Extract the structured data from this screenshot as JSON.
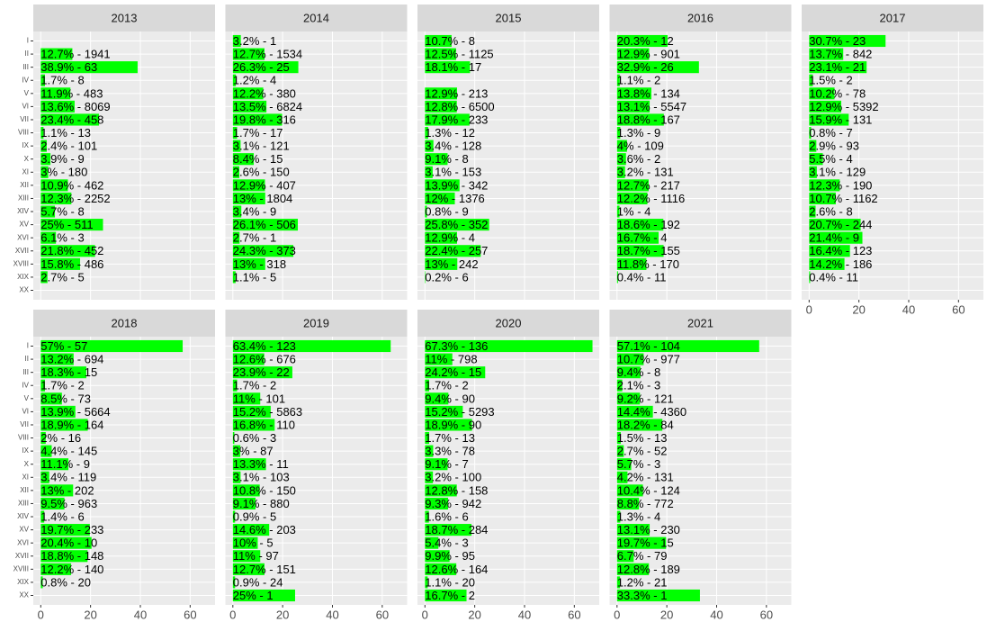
{
  "chart_data": {
    "type": "bar",
    "orientation": "horizontal",
    "color": "#00ff00",
    "xlim": [
      -3,
      70
    ],
    "xticks": [
      0,
      20,
      40,
      60
    ],
    "grid": true,
    "categories": [
      "I",
      "II",
      "III",
      "IV",
      "V",
      "VI",
      "VII",
      "VIII",
      "IX",
      "X",
      "XI",
      "XII",
      "XIII",
      "XIV",
      "XV",
      "XVI",
      "XVII",
      "XVIII",
      "XIX",
      "XX"
    ],
    "facets": [
      {
        "title": "2013",
        "values": [
          null,
          12.7,
          38.9,
          1.7,
          11.9,
          13.6,
          23.4,
          1.1,
          2.4,
          3.9,
          3,
          10.9,
          12.3,
          5.7,
          25,
          6.1,
          21.8,
          15.8,
          2.7,
          null
        ],
        "value_labels": [
          null,
          "12.7% - 1941",
          "38.9% - 63",
          "1.7% - 8",
          "11.9% - 483",
          "13.6% - 8069",
          "23.4% - 458",
          "1.1% - 13",
          "2.4% - 101",
          "3.9% - 9",
          "3% - 180",
          "10.9% - 462",
          "12.3% - 2252",
          "5.7% - 8",
          "25% - 511",
          "6.1% - 3",
          "21.8% - 452",
          "15.8% - 486",
          "2.7% - 5",
          null
        ]
      },
      {
        "title": "2014",
        "values": [
          3.2,
          12.7,
          26.3,
          1.2,
          12.2,
          13.5,
          19.8,
          1.7,
          3.1,
          8.4,
          2.6,
          12.9,
          13,
          3.4,
          26.1,
          2.7,
          24.3,
          13,
          1.1,
          null
        ],
        "value_labels": [
          "3.2% - 1",
          "12.7% - 1534",
          "26.3% - 25",
          "1.2% - 4",
          "12.2% - 380",
          "13.5% - 6824",
          "19.8% - 316",
          "1.7% - 17",
          "3.1% - 121",
          "8.4% - 15",
          "2.6% - 150",
          "12.9% - 407",
          "13% - 1804",
          "3.4% - 9",
          "26.1% - 506",
          "2.7% - 1",
          "24.3% - 373",
          "13% - 318",
          "1.1% - 5",
          null
        ]
      },
      {
        "title": "2015",
        "values": [
          10.7,
          12.5,
          18.1,
          null,
          12.9,
          12.8,
          17.9,
          1.3,
          3.4,
          9.1,
          3.1,
          13.9,
          12,
          0.8,
          25.8,
          12.9,
          22.4,
          13,
          0.2,
          null
        ],
        "value_labels": [
          "10.7% - 8",
          "12.5% - 1125",
          "18.1% - 17",
          null,
          "12.9% - 213",
          "12.8% - 6500",
          "17.9% - 233",
          "1.3% - 12",
          "3.4% - 128",
          "9.1% - 8",
          "3.1% - 153",
          "13.9% - 342",
          "12% - 1376",
          "0.8% - 9",
          "25.8% - 352",
          "12.9% - 4",
          "22.4% - 257",
          "13% - 242",
          "0.2% - 6",
          null
        ]
      },
      {
        "title": "2016",
        "values": [
          20.3,
          12.9,
          32.9,
          1.1,
          13.8,
          13.1,
          18.8,
          1.3,
          4,
          3.6,
          3.2,
          12.7,
          12.2,
          1,
          18.6,
          16.7,
          18.7,
          11.8,
          0.4,
          null
        ],
        "value_labels": [
          "20.3% - 12",
          "12.9% - 901",
          "32.9% - 26",
          "1.1% - 2",
          "13.8% - 134",
          "13.1% - 5547",
          "18.8% - 167",
          "1.3% - 9",
          "4% - 109",
          "3.6% - 2",
          "3.2% - 131",
          "12.7% - 217",
          "12.2% - 1116",
          "1% - 4",
          "18.6% - 192",
          "16.7% - 4",
          "18.7% - 155",
          "11.8% - 170",
          "0.4% - 11",
          null
        ]
      },
      {
        "title": "2017",
        "values": [
          30.7,
          13.7,
          23.1,
          1.5,
          10.2,
          12.9,
          15.9,
          0.8,
          2.9,
          5.5,
          3.1,
          12.3,
          10.7,
          2.6,
          20.7,
          21.4,
          16.4,
          14.2,
          0.4,
          null
        ],
        "value_labels": [
          "30.7% - 23",
          "13.7% - 842",
          "23.1% - 21",
          "1.5% - 2",
          "10.2% - 78",
          "12.9% - 5392",
          "15.9% - 131",
          "0.8% - 7",
          "2.9% - 93",
          "5.5% - 4",
          "3.1% - 129",
          "12.3% - 190",
          "10.7% - 1162",
          "2.6% - 8",
          "20.7% - 244",
          "21.4% - 9",
          "16.4% - 123",
          "14.2% - 186",
          "0.4% - 11",
          null
        ]
      },
      {
        "title": "2018",
        "values": [
          57,
          13.2,
          18.3,
          1.7,
          8.5,
          13.9,
          18.9,
          2,
          4.4,
          11.1,
          3.4,
          13,
          9.5,
          1.4,
          19.7,
          20.4,
          18.8,
          12.2,
          0.8,
          null
        ],
        "value_labels": [
          "57% - 57",
          "13.2% - 694",
          "18.3% - 15",
          "1.7% - 2",
          "8.5% - 73",
          "13.9% - 5664",
          "18.9% - 164",
          "2% - 16",
          "4.4% - 145",
          "11.1% - 9",
          "3.4% - 119",
          "13% - 202",
          "9.5% - 963",
          "1.4% - 6",
          "19.7% - 233",
          "20.4% - 10",
          "18.8% - 148",
          "12.2% - 140",
          "0.8% - 20",
          null
        ]
      },
      {
        "title": "2019",
        "values": [
          63.4,
          12.6,
          23.9,
          1.7,
          11,
          15.2,
          16.8,
          0.6,
          3,
          13.3,
          3.1,
          10.8,
          9.1,
          0.9,
          14.6,
          10,
          11,
          12.7,
          0.9,
          25
        ],
        "value_labels": [
          "63.4% - 123",
          "12.6% - 676",
          "23.9% - 22",
          "1.7% - 2",
          "11% - 101",
          "15.2% - 5863",
          "16.8% - 110",
          "0.6% - 3",
          "3% - 87",
          "13.3% - 11",
          "3.1% - 103",
          "10.8% - 150",
          "9.1% - 880",
          "0.9% - 5",
          "14.6% - 203",
          "10% - 5",
          "11% - 97",
          "12.7% - 151",
          "0.9% - 24",
          "25% - 1"
        ]
      },
      {
        "title": "2020",
        "values": [
          67.3,
          11,
          24.2,
          1.7,
          9.4,
          15.2,
          18.9,
          1.7,
          3.3,
          9.1,
          3.2,
          12.8,
          9.3,
          1.6,
          18.7,
          5.4,
          9.9,
          12.6,
          1.1,
          16.7
        ],
        "value_labels": [
          "67.3% - 136",
          "11% - 798",
          "24.2% - 15",
          "1.7% - 2",
          "9.4% - 90",
          "15.2% - 5293",
          "18.9% - 90",
          "1.7% - 13",
          "3.3% - 78",
          "9.1% - 7",
          "3.2% - 100",
          "12.8% - 158",
          "9.3% - 942",
          "1.6% - 6",
          "18.7% - 284",
          "5.4% - 3",
          "9.9% - 95",
          "12.6% - 164",
          "1.1% - 20",
          "16.7% - 2"
        ]
      },
      {
        "title": "2021",
        "values": [
          57.1,
          10.7,
          9.4,
          2.1,
          9.2,
          14.4,
          18.2,
          1.5,
          2.7,
          5.7,
          4.2,
          10.4,
          8.8,
          1.3,
          13.1,
          19.7,
          6.7,
          12.8,
          1.2,
          33.3
        ],
        "value_labels": [
          "57.1% - 104",
          "10.7% - 977",
          "9.4% - 8",
          "2.1% - 3",
          "9.2% - 121",
          "14.4% - 4360",
          "18.2% - 84",
          "1.5% - 13",
          "2.7% - 52",
          "5.7% - 3",
          "4.2% - 131",
          "10.4% - 124",
          "8.8% - 772",
          "1.3% - 4",
          "13.1% - 230",
          "19.7% - 15",
          "6.7% - 79",
          "12.8% - 189",
          "1.2% - 21",
          "33.3% - 1"
        ]
      }
    ]
  }
}
